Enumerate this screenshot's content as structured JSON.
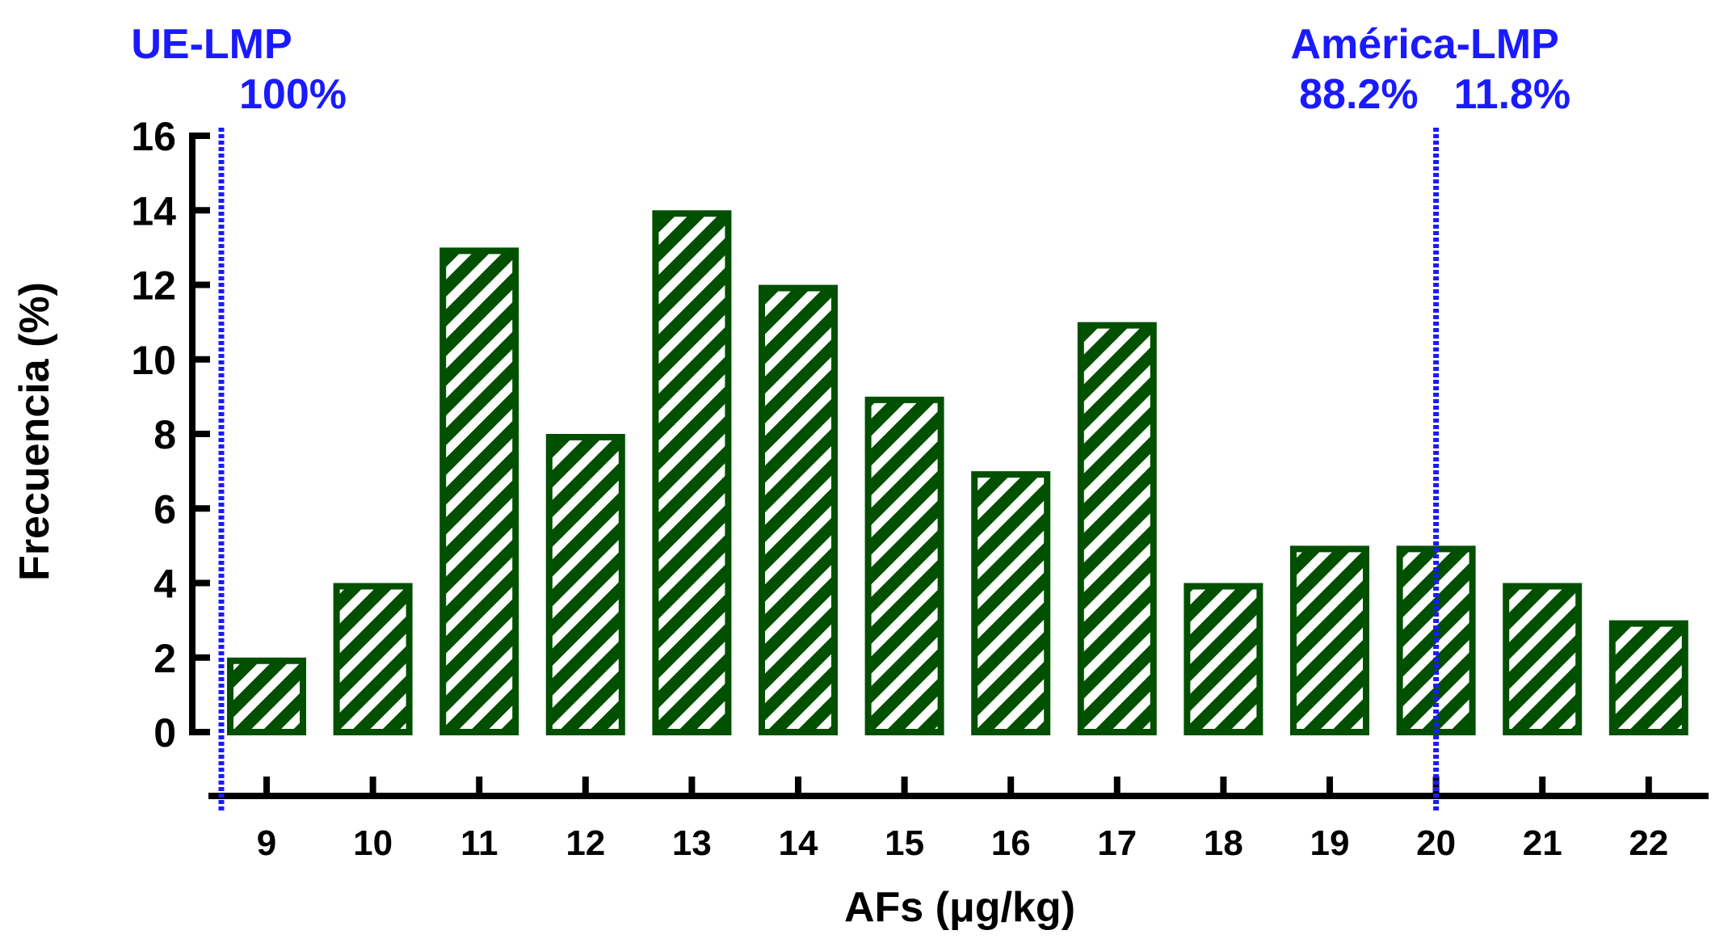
{
  "chart_data": {
    "type": "bar",
    "xlabel": "AFs (μg/kg)",
    "ylabel": "Frecuencia (%)",
    "categories": [
      "9",
      "10",
      "11",
      "12",
      "13",
      "14",
      "15",
      "16",
      "17",
      "18",
      "19",
      "20",
      "21",
      "22"
    ],
    "values": [
      2,
      4,
      13,
      8,
      14,
      12,
      9,
      7,
      11,
      4,
      5,
      5,
      4,
      3
    ],
    "ylim": [
      0,
      16
    ],
    "yticks": [
      "0",
      "2",
      "4",
      "6",
      "8",
      "10",
      "12",
      "14",
      "16"
    ],
    "grid": false,
    "bar_style": "hatched",
    "colors": {
      "bar": "#005000",
      "hatch_stripe": "#ffffff",
      "axis": "#000000",
      "reference": "#1a1aff"
    },
    "reference_lines": [
      {
        "at_category": "9",
        "label": "UE-LMP",
        "left_value": "",
        "right_value": "100%"
      },
      {
        "at_category": "20",
        "label": "América-LMP",
        "left_value": "88.2%",
        "right_value": "11.8%"
      }
    ]
  }
}
